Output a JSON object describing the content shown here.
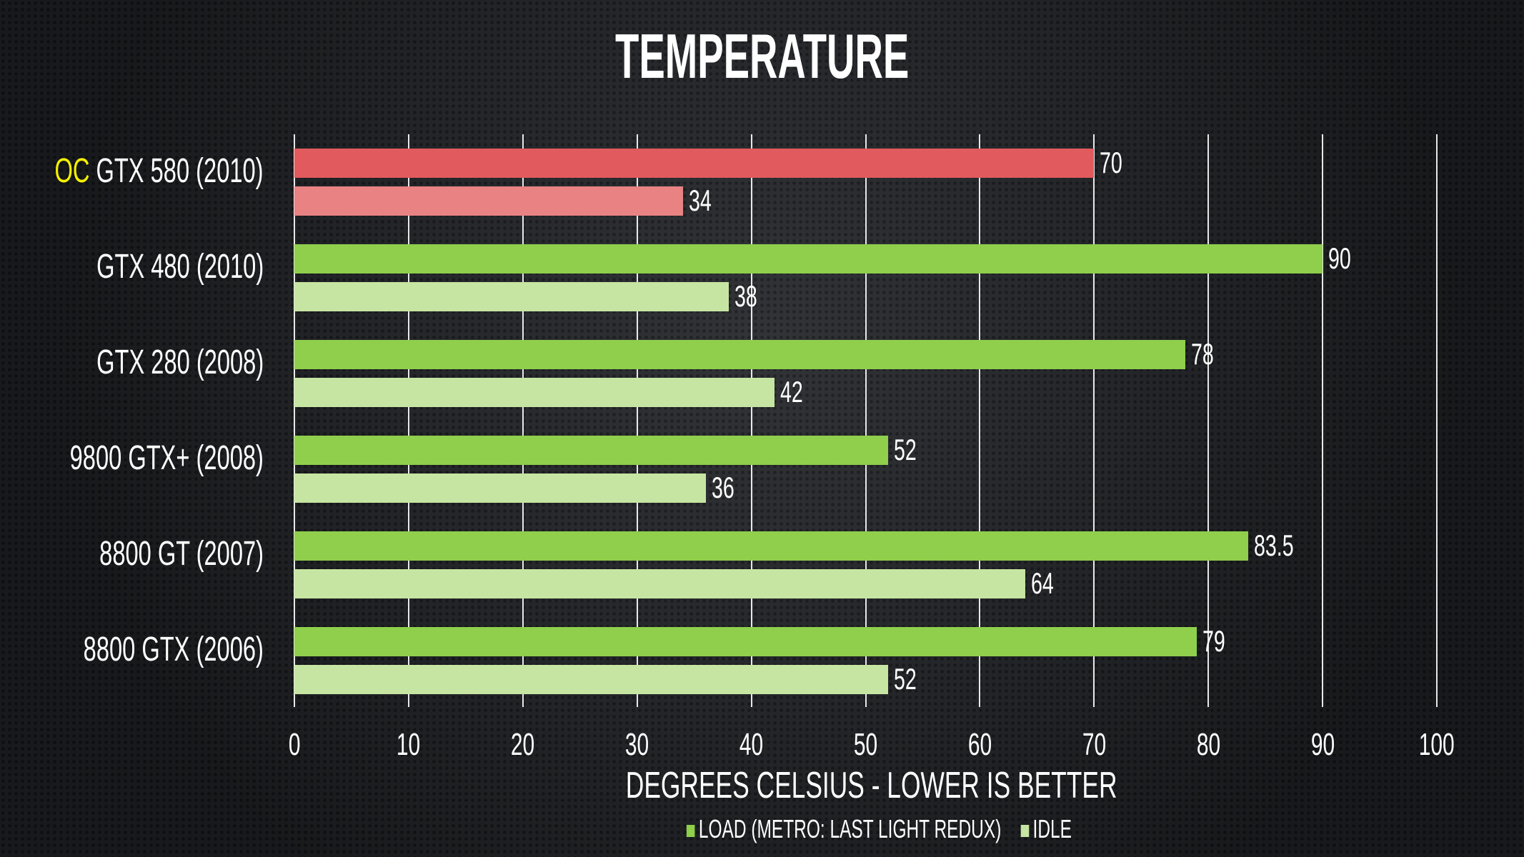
{
  "chart_data": {
    "type": "bar",
    "orientation": "horizontal",
    "title": "TEMPERATURE",
    "xlabel": "DEGREES CELSIUS - LOWER IS BETTER",
    "ylabel": "",
    "xlim": [
      0,
      100
    ],
    "xticks": [
      "0",
      "10",
      "20",
      "30",
      "40",
      "50",
      "60",
      "70",
      "80",
      "90",
      "100"
    ],
    "grid": true,
    "legend_position": "bottom",
    "categories": [
      {
        "prefix": "OC",
        "label": "GTX 580 (2010)"
      },
      {
        "prefix": "",
        "label": "GTX 480 (2010)"
      },
      {
        "prefix": "",
        "label": "GTX 280 (2008)"
      },
      {
        "prefix": "",
        "label": "9800 GTX+ (2008)"
      },
      {
        "prefix": "",
        "label": "8800 GT (2007)"
      },
      {
        "prefix": "",
        "label": "8800 GTX (2006)"
      }
    ],
    "series": [
      {
        "name": "LOAD (METRO: LAST LIGHT REDUX)",
        "values": [
          70,
          90,
          78,
          52,
          83.5,
          79
        ],
        "color": "#8fcf4c",
        "highlight_color": "#e15a5d"
      },
      {
        "name": "IDLE",
        "values": [
          34,
          38,
          42,
          36,
          64,
          52
        ],
        "color": "#c6e5a2",
        "highlight_color": "#e88283"
      }
    ],
    "highlight_color_prefix": "#f5f000"
  }
}
